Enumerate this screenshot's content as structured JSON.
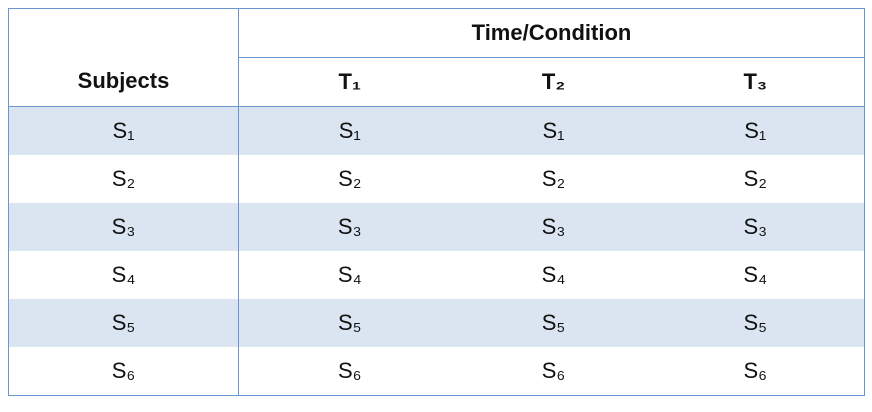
{
  "table": {
    "group_header": "Time/Condition",
    "subjects_header": "Subjects",
    "condition_headers": [
      "T₁",
      "T₂",
      "T₃"
    ],
    "rows": [
      [
        "S₁",
        "S₁",
        "S₁",
        "S₁"
      ],
      [
        "S₂",
        "S₂",
        "S₂",
        "S₂"
      ],
      [
        "S₃",
        "S₃",
        "S₃",
        "S₃"
      ],
      [
        "S₄",
        "S₄",
        "S₄",
        "S₄"
      ],
      [
        "S₅",
        "S₅",
        "S₅",
        "S₅"
      ],
      [
        "S₆",
        "S₆",
        "S₆",
        "S₆"
      ]
    ]
  }
}
